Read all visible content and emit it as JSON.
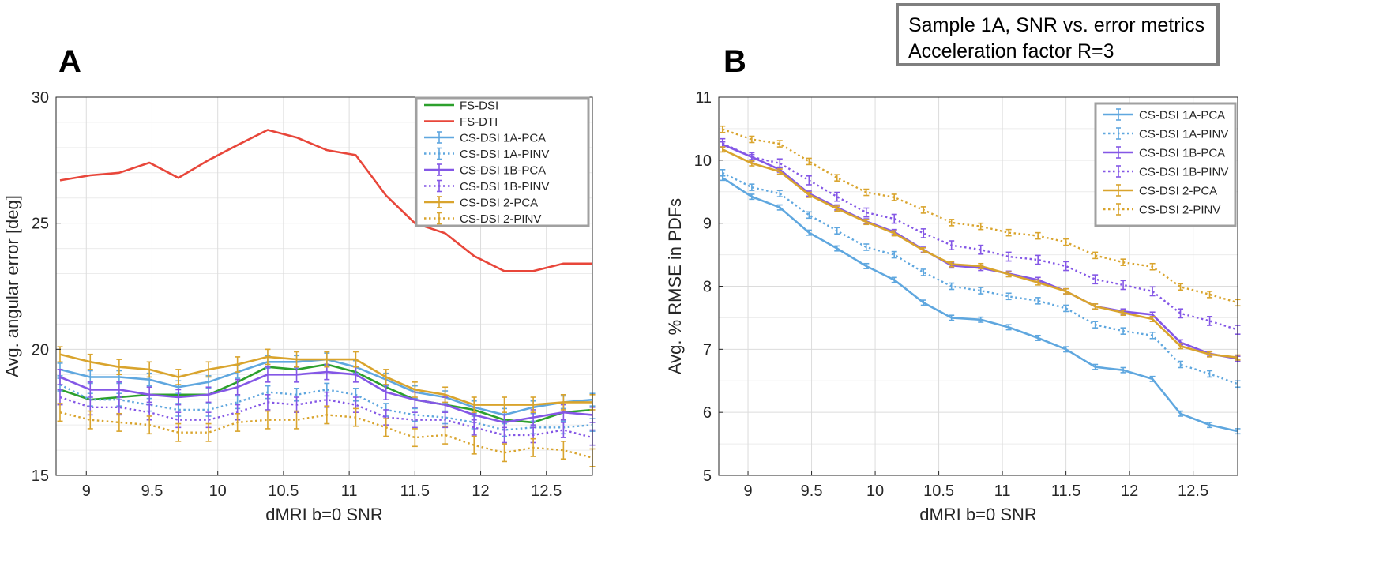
{
  "annotation": {
    "line1": "Sample 1A, SNR vs. error metrics",
    "line2": "Acceleration factor R=3"
  },
  "colors": {
    "fs_dsi": "#2ca02c",
    "fs_dti": "#e8463a",
    "cs_1a": "#5fa7df",
    "cs_1b": "#8457e6",
    "cs_2": "#d9a42d"
  },
  "chart_data": [
    {
      "type": "line",
      "panel_label": "A",
      "title": "",
      "xlabel": "dMRI b=0 SNR",
      "ylabel": "Avg. angular error [deg]",
      "xlim": [
        8.77,
        12.85
      ],
      "ylim": [
        15,
        30
      ],
      "xticks": [
        9,
        9.5,
        10,
        10.5,
        11,
        11.5,
        12,
        12.5
      ],
      "xtick_labels": [
        "9",
        "9.5",
        "10",
        "10.5",
        "11",
        "11.5",
        "12",
        "12.5"
      ],
      "yticks": [
        15,
        20,
        25,
        30
      ],
      "ytick_labels": [
        "15",
        "20",
        "25",
        "30"
      ],
      "grid": true,
      "legend_position": "top-right",
      "x": [
        8.8,
        9.03,
        9.25,
        9.48,
        9.7,
        9.93,
        10.15,
        10.38,
        10.6,
        10.83,
        11.05,
        11.28,
        11.5,
        11.73,
        11.95,
        12.18,
        12.4,
        12.63,
        12.85
      ],
      "series": [
        {
          "name": "FS-DSI",
          "color_key": "fs_dsi",
          "style": "solid",
          "errorbars": false,
          "values": [
            18.4,
            18.0,
            18.1,
            18.2,
            18.2,
            18.2,
            18.7,
            19.3,
            19.2,
            19.4,
            19.1,
            18.5,
            18.0,
            17.8,
            17.6,
            17.2,
            17.1,
            17.5,
            17.6
          ]
        },
        {
          "name": "FS-DTI",
          "color_key": "fs_dti",
          "style": "solid",
          "errorbars": false,
          "values": [
            26.7,
            26.9,
            27.0,
            27.4,
            26.8,
            27.5,
            28.1,
            28.7,
            28.4,
            27.9,
            27.7,
            26.1,
            25.0,
            24.6,
            23.7,
            23.1,
            23.1,
            23.4,
            23.4
          ]
        },
        {
          "name": "CS-DSI 1A-PCA",
          "color_key": "cs_1a",
          "style": "solid",
          "errorbars": true,
          "err": 0.25,
          "values": [
            19.2,
            18.9,
            18.9,
            18.8,
            18.5,
            18.7,
            19.1,
            19.5,
            19.5,
            19.6,
            19.3,
            18.8,
            18.3,
            18.1,
            17.7,
            17.4,
            17.7,
            17.9,
            18.0
          ]
        },
        {
          "name": "CS-DSI 1A-PINV",
          "color_key": "cs_1a",
          "style": "dotted",
          "errorbars": true,
          "err": 0.25,
          "values": [
            18.6,
            18.0,
            18.0,
            17.8,
            17.6,
            17.6,
            17.9,
            18.3,
            18.2,
            18.4,
            18.2,
            17.6,
            17.4,
            17.3,
            17.1,
            16.8,
            16.9,
            16.9,
            17.0
          ]
        },
        {
          "name": "CS-DSI 1B-PCA",
          "color_key": "cs_1b",
          "style": "solid",
          "errorbars": true,
          "err": 0.3,
          "values": [
            18.9,
            18.4,
            18.4,
            18.2,
            18.1,
            18.2,
            18.5,
            19.0,
            19.0,
            19.1,
            19.0,
            18.3,
            18.0,
            17.8,
            17.4,
            17.1,
            17.3,
            17.5,
            17.4
          ]
        },
        {
          "name": "CS-DSI 1B-PINV",
          "color_key": "cs_1b",
          "style": "dotted",
          "errorbars": true,
          "err": 0.3,
          "values": [
            18.1,
            17.7,
            17.7,
            17.5,
            17.2,
            17.2,
            17.5,
            17.9,
            17.8,
            18.0,
            17.8,
            17.3,
            17.2,
            17.2,
            16.9,
            16.6,
            16.6,
            16.8,
            16.5
          ]
        },
        {
          "name": "CS-DSI 2-PCA",
          "color_key": "cs_2",
          "style": "solid",
          "errorbars": true,
          "err": 0.3,
          "values": [
            19.8,
            19.5,
            19.3,
            19.2,
            18.9,
            19.2,
            19.4,
            19.7,
            19.6,
            19.6,
            19.6,
            18.9,
            18.4,
            18.2,
            17.8,
            17.8,
            17.8,
            17.9,
            17.9
          ]
        },
        {
          "name": "CS-DSI 2-PINV",
          "color_key": "cs_2",
          "style": "dotted",
          "errorbars": true,
          "err": 0.35,
          "values": [
            17.5,
            17.2,
            17.1,
            17.0,
            16.7,
            16.7,
            17.1,
            17.2,
            17.2,
            17.4,
            17.3,
            16.9,
            16.5,
            16.6,
            16.2,
            15.9,
            16.1,
            16.0,
            15.7
          ]
        }
      ]
    },
    {
      "type": "line",
      "panel_label": "B",
      "title": "",
      "xlabel": "dMRI b=0 SNR",
      "ylabel": "Avg. % RMSE in PDFs",
      "xlim": [
        8.77,
        12.85
      ],
      "ylim": [
        5,
        11
      ],
      "xticks": [
        9,
        9.5,
        10,
        10.5,
        11,
        11.5,
        12,
        12.5
      ],
      "xtick_labels": [
        "9",
        "9.5",
        "10",
        "10.5",
        "11",
        "11.5",
        "12",
        "12.5"
      ],
      "yticks": [
        5,
        6,
        7,
        8,
        9,
        10,
        11
      ],
      "ytick_labels": [
        "5",
        "6",
        "7",
        "8",
        "9",
        "10",
        "11"
      ],
      "grid": true,
      "legend_position": "top-right",
      "x": [
        8.8,
        9.03,
        9.25,
        9.48,
        9.7,
        9.93,
        10.15,
        10.38,
        10.6,
        10.83,
        11.05,
        11.28,
        11.5,
        11.73,
        11.95,
        12.18,
        12.4,
        12.63,
        12.85
      ],
      "series": [
        {
          "name": "CS-DSI 1A-PCA",
          "color_key": "cs_1a",
          "style": "solid",
          "errorbars": true,
          "err": 0.04,
          "values": [
            9.72,
            9.42,
            9.25,
            8.85,
            8.6,
            8.32,
            8.1,
            7.74,
            7.5,
            7.47,
            7.35,
            7.18,
            7.0,
            6.72,
            6.67,
            6.53,
            5.98,
            5.8,
            5.7
          ]
        },
        {
          "name": "CS-DSI 1A-PINV",
          "color_key": "cs_1a",
          "style": "dotted",
          "errorbars": true,
          "err": 0.05,
          "values": [
            9.8,
            9.57,
            9.47,
            9.13,
            8.88,
            8.62,
            8.5,
            8.22,
            8.0,
            7.93,
            7.84,
            7.77,
            7.65,
            7.39,
            7.29,
            7.22,
            6.76,
            6.61,
            6.45
          ]
        },
        {
          "name": "CS-DSI 1B-PCA",
          "color_key": "cs_1b",
          "style": "solid",
          "errorbars": true,
          "err": 0.04,
          "values": [
            10.25,
            10.05,
            9.85,
            9.47,
            9.25,
            9.03,
            8.86,
            8.58,
            8.33,
            8.29,
            8.2,
            8.1,
            7.92,
            7.68,
            7.6,
            7.55,
            7.11,
            6.93,
            6.85
          ]
        },
        {
          "name": "CS-DSI 1B-PINV",
          "color_key": "cs_1b",
          "style": "dotted",
          "errorbars": true,
          "err": 0.07,
          "values": [
            10.27,
            10.05,
            9.95,
            9.68,
            9.42,
            9.17,
            9.07,
            8.84,
            8.65,
            8.58,
            8.47,
            8.42,
            8.32,
            8.11,
            8.02,
            7.92,
            7.57,
            7.45,
            7.31
          ]
        },
        {
          "name": "CS-DSI 2-PCA",
          "color_key": "cs_2",
          "style": "solid",
          "errorbars": true,
          "err": 0.04,
          "values": [
            10.17,
            9.95,
            9.82,
            9.45,
            9.23,
            9.02,
            8.84,
            8.57,
            8.35,
            8.32,
            8.19,
            8.06,
            7.92,
            7.68,
            7.58,
            7.48,
            7.05,
            6.92,
            6.87
          ]
        },
        {
          "name": "CS-DSI 2-PINV",
          "color_key": "cs_2",
          "style": "dotted",
          "errorbars": true,
          "err": 0.05,
          "values": [
            10.49,
            10.33,
            10.26,
            9.98,
            9.72,
            9.49,
            9.41,
            9.21,
            9.01,
            8.95,
            8.85,
            8.8,
            8.7,
            8.49,
            8.38,
            8.31,
            7.99,
            7.87,
            7.74
          ]
        }
      ]
    }
  ]
}
